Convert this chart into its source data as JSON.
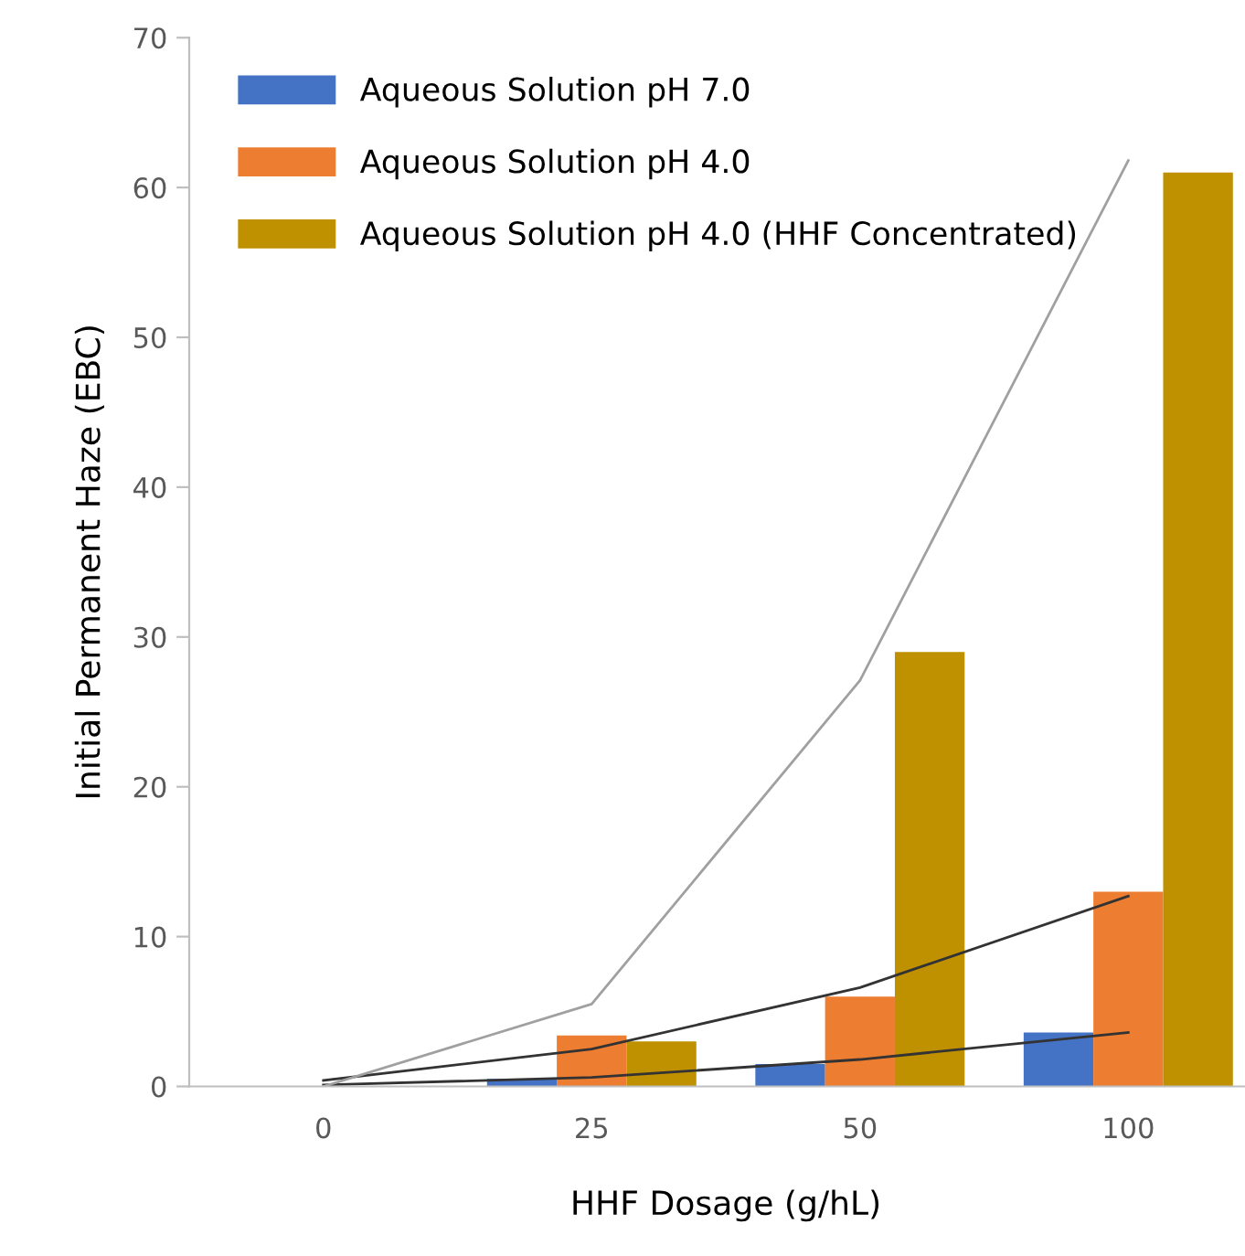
{
  "chart_data": {
    "type": "bar",
    "xlabel": "HHF Dosage (g/hL)",
    "ylabel": "Initial Permanent Haze (EBC)",
    "categories": [
      "0",
      "25",
      "50",
      "100"
    ],
    "series": [
      {
        "name": "Aqueous Solution pH 7.0",
        "color": "#4472c4",
        "values": [
          0,
          0.5,
          1.5,
          3.6
        ]
      },
      {
        "name": "Aqueous Solution pH 4.0",
        "color": "#ed7d31",
        "values": [
          0,
          3.4,
          6.0,
          13.0
        ]
      },
      {
        "name": "Aqueous Solution pH 4.0 (HHF Concentrated)",
        "color": "#bf9000",
        "values": [
          0,
          3.0,
          29.0,
          61.0
        ]
      },
      {
        "type": "line",
        "color": "#333333",
        "x": [
          "0",
          "25",
          "50",
          "100"
        ],
        "values": [
          0.1,
          0.6,
          1.8,
          3.6
        ]
      },
      {
        "type": "line",
        "color": "#333333",
        "x": [
          "0",
          "25",
          "50",
          "100"
        ],
        "values": [
          0.4,
          2.5,
          6.6,
          12.7
        ]
      },
      {
        "type": "line",
        "color": "#a0a0a0",
        "x": [
          "0",
          "25",
          "50",
          "100"
        ],
        "values": [
          0,
          5.5,
          27.1,
          61.8
        ]
      }
    ],
    "ylim": [
      0,
      70
    ],
    "yticks": [
      0,
      10,
      20,
      30,
      40,
      50,
      60,
      70
    ],
    "grid": false,
    "legend": "top left"
  }
}
